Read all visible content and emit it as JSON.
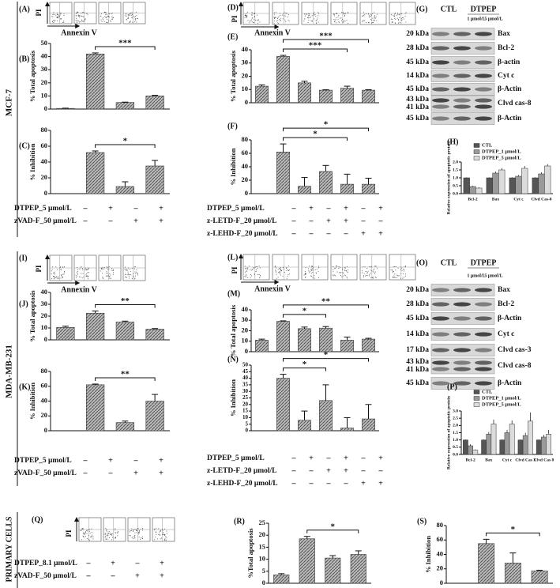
{
  "rows": [
    "MCF-7",
    "MDA-MB-231",
    "PRIMARY CELLS"
  ],
  "flow": [
    {
      "label": "(A)",
      "y_label": "PI",
      "x_label": "Annexin V"
    },
    {
      "label": "(D)",
      "y_label": "PI",
      "x_label": "Annexin V"
    },
    {
      "label": "(I)",
      "y_label": "PI",
      "x_label": "Annexin V"
    },
    {
      "label": "(L)",
      "y_label": "PI",
      "x_label": "Annexin V"
    },
    {
      "label": "(Q)",
      "y_label": "PI",
      "treatments": [
        {
          "name": "DTPEP_8.1 μmol/L",
          "signs": [
            "–",
            "+",
            "–",
            "+"
          ]
        },
        {
          "name": "zVAD-F_50 μmol/L",
          "signs": [
            "–",
            "–",
            "+",
            "+"
          ]
        }
      ]
    }
  ],
  "blots": [
    {
      "label": "(G)",
      "groups": [
        "CTL",
        "DTPEP"
      ],
      "doses": [
        "1 μmol/L",
        "5 μmol/L"
      ],
      "rows": [
        {
          "kda": [
            "20 kDa"
          ],
          "protein": "Bax"
        },
        {
          "kda": [
            "28 kDa"
          ],
          "protein": "Bcl-2"
        },
        {
          "kda": [
            "45 kDa"
          ],
          "protein": "β-actin"
        },
        {
          "kda": [
            "14 kDa"
          ],
          "protein": "Cyt c"
        },
        {
          "kda": [
            "45 kDa"
          ],
          "protein": "β-Actin"
        },
        {
          "kda": [
            "43 kDa",
            "41 kDa"
          ],
          "protein": "Clvd cas-8"
        },
        {
          "kda": [
            "45 kDa"
          ],
          "protein": "β-Actin"
        }
      ]
    },
    {
      "label": "(O)",
      "groups": [
        "CTL",
        "DTPEP"
      ],
      "doses": [
        "1 μmol/L",
        "5 μmol/L"
      ],
      "rows": [
        {
          "kda": [
            "20 kDa"
          ],
          "protein": "Bax"
        },
        {
          "kda": [
            "28 kDa"
          ],
          "protein": "Bcl-2"
        },
        {
          "kda": [
            "45 kDa"
          ],
          "protein": "β-Actin"
        },
        {
          "kda": [
            "14 kDa"
          ],
          "protein": "Cyt c"
        },
        {
          "kda": [
            "17 kDa"
          ],
          "protein": "Clvd cas-3"
        },
        {
          "kda": [
            "43 kDa",
            "41 kDa"
          ],
          "protein": "Clvd cas-8"
        },
        {
          "kda": [
            "45 kDa"
          ],
          "protein": "β-Actin"
        }
      ]
    }
  ],
  "chart_data": [
    {
      "type": "bar",
      "label": "(B)",
      "y_label": "% Total apoptosis",
      "values": [
        0.5,
        42,
        5,
        10
      ],
      "errors": [
        0.2,
        0.8,
        0.3,
        0.5
      ],
      "ylim": [
        0,
        50
      ],
      "yticks": [
        0,
        10,
        20,
        30,
        40,
        50
      ],
      "annotations": [
        {
          "text": "***",
          "between": [
            1,
            3
          ]
        }
      ]
    },
    {
      "type": "bar",
      "label": "(C)",
      "y_label": "% Inhibition",
      "values": [
        0,
        52,
        9,
        35
      ],
      "errors": [
        0,
        2,
        6,
        7
      ],
      "ylim": [
        0,
        80
      ],
      "yticks": [
        0,
        20,
        40,
        60,
        80
      ],
      "annotations": [
        {
          "text": "*",
          "between": [
            1,
            3
          ]
        }
      ],
      "treatments": [
        {
          "name": "DTPEP_5 μmol/L",
          "signs": [
            "–",
            "+",
            "–",
            "+"
          ]
        },
        {
          "name": "zVAD-F_50 μmol/L",
          "signs": [
            "–",
            "–",
            "+",
            "+"
          ]
        }
      ]
    },
    {
      "type": "bar",
      "label": "(E)",
      "y_label": "% Total apoptosis",
      "values": [
        12.5,
        35,
        15,
        9.5,
        11,
        9.5
      ],
      "errors": [
        1,
        0.8,
        1.2,
        0.3,
        1.5,
        0.4
      ],
      "ylim": [
        0,
        40
      ],
      "yticks": [
        0,
        10,
        20,
        30,
        40
      ],
      "annotations": [
        {
          "text": "***",
          "between": [
            1,
            4
          ]
        },
        {
          "text": "***",
          "between": [
            1,
            5
          ]
        }
      ]
    },
    {
      "type": "bar",
      "label": "(F)",
      "y_label": "% Inhibition",
      "values": [
        0,
        62,
        11,
        33,
        14,
        14
      ],
      "errors": [
        0,
        12,
        13,
        9,
        15,
        9
      ],
      "ylim": [
        0,
        80
      ],
      "yticks": [
        0,
        20,
        40,
        60,
        80
      ],
      "annotations": [
        {
          "text": "*",
          "between": [
            1,
            4
          ]
        },
        {
          "text": "*",
          "between": [
            1,
            5
          ]
        }
      ],
      "treatments": [
        {
          "name": "DTPEP_5 μmol/L",
          "signs": [
            "–",
            "+",
            "–",
            "+",
            "–",
            "+"
          ]
        },
        {
          "name": "z-LETD-F_20 μmol/L",
          "signs": [
            "–",
            "–",
            "+",
            "+",
            "–",
            "–"
          ]
        },
        {
          "name": "z-LEHD-F_20 μmol/L",
          "signs": [
            "–",
            "–",
            "–",
            "–",
            "+",
            "+"
          ]
        }
      ]
    },
    {
      "type": "grouped_bar",
      "label": "(H)",
      "y_label": "Relative expression of apoptotic protein",
      "categories": [
        "Bcl-2",
        "Bax",
        "Cyt c",
        "Clvd Cas-8"
      ],
      "series": [
        {
          "name": "CTL",
          "color": "#555555",
          "values": [
            1,
            1,
            1,
            1
          ],
          "errors": [
            0.03,
            0.03,
            0.03,
            0.03
          ]
        },
        {
          "name": "DTPEP_1 μmol/L",
          "color": "#9a9a9a",
          "values": [
            0.45,
            1.3,
            1.1,
            1.25
          ],
          "errors": [
            0.05,
            0.1,
            0.08,
            0.1
          ]
        },
        {
          "name": "DTPEP_5 μmol/L",
          "color": "#dcdcdc",
          "values": [
            0.35,
            1.5,
            1.6,
            1.75
          ],
          "errors": [
            0.05,
            0.12,
            0.15,
            0.12
          ]
        }
      ],
      "ylim": [
        0,
        2
      ],
      "yticks": [
        {
          "value": 0,
          "label": "0.0"
        },
        {
          "value": 0.5,
          "label": "0.5"
        },
        {
          "value": 1,
          "label": "1.0"
        },
        {
          "value": 1.5,
          "label": "1.5"
        },
        {
          "value": 2,
          "label": "2.0"
        }
      ]
    },
    {
      "type": "bar",
      "label": "(J)",
      "y_label": "% Total apoptosis",
      "values": [
        10.5,
        22.5,
        15,
        9
      ],
      "errors": [
        1,
        1.8,
        0.8,
        0.5
      ],
      "ylim": [
        0,
        40
      ],
      "yticks": [
        0,
        10,
        20,
        30,
        40
      ],
      "annotations": [
        {
          "text": "**",
          "between": [
            1,
            3
          ]
        }
      ]
    },
    {
      "type": "bar",
      "label": "(K)",
      "y_label": "% Inhibition",
      "values": [
        0,
        62,
        11,
        40
      ],
      "errors": [
        0,
        1,
        2,
        9
      ],
      "ylim": [
        0,
        80
      ],
      "yticks": [
        0,
        20,
        40,
        60,
        80
      ],
      "annotations": [
        {
          "text": "**",
          "between": [
            1,
            3
          ]
        }
      ],
      "treatments": [
        {
          "name": "DTPEP_5 μmol/L",
          "signs": [
            "–",
            "+",
            "–",
            "+"
          ]
        },
        {
          "name": "zVAD-F_50 μmol/L",
          "signs": [
            "–",
            "–",
            "+",
            "+"
          ]
        }
      ]
    },
    {
      "type": "bar",
      "label": "(M)",
      "y_label": "% Total apoptosis",
      "values": [
        11,
        29,
        22,
        22.5,
        11,
        12
      ],
      "errors": [
        1,
        0.5,
        1.5,
        1.5,
        3,
        0.8
      ],
      "ylim": [
        0,
        40
      ],
      "yticks": [
        0,
        10,
        20,
        30,
        40
      ],
      "annotations": [
        {
          "text": "*",
          "between": [
            1,
            3
          ]
        },
        {
          "text": "**",
          "between": [
            1,
            5
          ]
        }
      ]
    },
    {
      "type": "bar",
      "label": "(N)",
      "y_label": "% Inhibition",
      "values": [
        0,
        40,
        8,
        23,
        2,
        9
      ],
      "errors": [
        0,
        3,
        7,
        12,
        8,
        11
      ],
      "ylim": [
        0,
        50
      ],
      "yticks": [
        0,
        5,
        10,
        15,
        20,
        25,
        30,
        35,
        40,
        45,
        50
      ],
      "annotations": [
        {
          "text": "*",
          "between": [
            1,
            3
          ]
        },
        {
          "text": "*",
          "between": [
            1,
            5
          ]
        }
      ],
      "treatments": [
        {
          "name": "DTPEP_5 μmol/L",
          "signs": [
            "–",
            "+",
            "–",
            "+",
            "–",
            "+"
          ]
        },
        {
          "name": "z-LETD-F_20 μmol/L",
          "signs": [
            "–",
            "–",
            "+",
            "+",
            "–",
            "–"
          ]
        },
        {
          "name": "z-LEHD-F_20 μmol/L",
          "signs": [
            "–",
            "–",
            "–",
            "–",
            "+",
            "+"
          ]
        }
      ]
    },
    {
      "type": "grouped_bar",
      "label": "(P)",
      "y_label": "Relative expression of apoptotic protein",
      "categories": [
        "Bcl-2",
        "Bax",
        "Cyt c",
        "Clvd Cas 3",
        "Clvd Cas 8"
      ],
      "series": [
        {
          "name": "CTL",
          "color": "#555555",
          "values": [
            1,
            1,
            1,
            1,
            1
          ],
          "errors": [
            0.03,
            0.03,
            0.03,
            0.03,
            0.03
          ]
        },
        {
          "name": "DTPEP_1 μmol/L",
          "color": "#9a9a9a",
          "values": [
            0.6,
            1.4,
            1.5,
            1.3,
            1.2
          ],
          "errors": [
            0.1,
            0.15,
            0.2,
            0.2,
            0.15
          ]
        },
        {
          "name": "DTPEP_5 μmol/L",
          "color": "#dcdcdc",
          "values": [
            0.3,
            2.1,
            2.1,
            2.3,
            1.4
          ],
          "errors": [
            0.05,
            0.3,
            0.25,
            0.6,
            0.3
          ]
        }
      ],
      "ylim": [
        0,
        3
      ],
      "yticks": [
        {
          "value": 0,
          "label": "0.0"
        },
        {
          "value": 0.5,
          "label": "0.5"
        },
        {
          "value": 1,
          "label": "1.0"
        },
        {
          "value": 1.5,
          "label": "1.5"
        },
        {
          "value": 2,
          "label": "2.0"
        },
        {
          "value": 2.5,
          "label": "2.5"
        },
        {
          "value": 3,
          "label": "3.0"
        }
      ]
    },
    {
      "type": "bar",
      "label": "(R)",
      "y_label": "%Total apoptosis",
      "values": [
        3.5,
        18.5,
        10.5,
        12
      ],
      "errors": [
        0.5,
        1,
        1,
        1.5
      ],
      "ylim": [
        0,
        25
      ],
      "yticks": [
        0,
        5,
        10,
        15,
        20,
        25
      ],
      "annotations": [
        {
          "text": "*",
          "between": [
            1,
            3
          ]
        }
      ]
    },
    {
      "type": "bar",
      "label": "(S)",
      "y_label": "% Inhibition",
      "values": [
        0,
        55,
        28,
        17
      ],
      "errors": [
        0,
        6,
        14,
        1
      ],
      "ylim": [
        0,
        80
      ],
      "yticks": [
        0,
        20,
        40,
        60,
        80
      ],
      "annotations": [
        {
          "text": "*",
          "between": [
            1,
            3
          ]
        }
      ]
    }
  ]
}
